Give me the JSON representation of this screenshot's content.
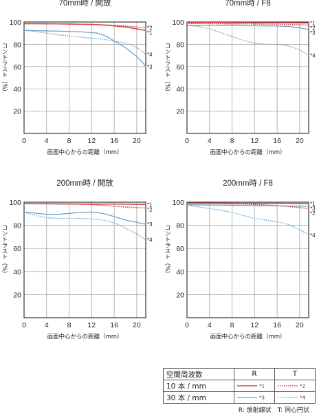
{
  "colors": {
    "R_10": "#d8474d",
    "T_10": "#d8474d",
    "R_30": "#6aa2cc",
    "T_30": "#6aa2cc",
    "axis": "#222222",
    "grid": "#9a9a9a"
  },
  "chart_data": [
    {
      "type": "line",
      "title": "70mm時 / 開放",
      "xlabel": "画面中心からの距離（mm）",
      "ylabel": "コントラスト（%）",
      "xlim": [
        0,
        21.6
      ],
      "ylim": [
        0,
        100
      ],
      "xticks": [
        0,
        4,
        8,
        12,
        16,
        20
      ],
      "yticks": [
        20,
        40,
        60,
        80,
        100
      ],
      "grid": true,
      "series": [
        {
          "name": "*1",
          "style": "R_10",
          "x": [
            0,
            2,
            4,
            6,
            8,
            10,
            12,
            14,
            16,
            18,
            20,
            21.6
          ],
          "y": [
            98.5,
            98.5,
            98.4,
            98.3,
            98.2,
            98,
            97.8,
            97.3,
            96.5,
            95.5,
            93.8,
            92.5
          ]
        },
        {
          "name": "*2",
          "style": "T_10",
          "x": [
            0,
            2,
            4,
            6,
            8,
            10,
            12,
            14,
            16,
            18,
            20,
            21.6
          ],
          "y": [
            98.5,
            98.5,
            98.4,
            98.3,
            98.2,
            98,
            97.8,
            97.5,
            97,
            96.5,
            95.5,
            94.8
          ]
        },
        {
          "name": "*3",
          "style": "R_30",
          "x": [
            0,
            2,
            4,
            6,
            8,
            10,
            12,
            13,
            14,
            15,
            16,
            17,
            18,
            19,
            20,
            21,
            21.6
          ],
          "y": [
            92.5,
            92.3,
            92,
            91.8,
            91.5,
            91.2,
            90.5,
            90,
            88.5,
            86,
            83,
            80,
            77,
            73,
            69,
            64,
            60
          ]
        },
        {
          "name": "*4",
          "style": "T_30",
          "x": [
            0,
            2,
            4,
            6,
            8,
            10,
            12,
            14,
            16,
            18,
            19,
            20,
            21,
            21.6
          ],
          "y": [
            92.5,
            91.5,
            90,
            88.5,
            87.5,
            86.5,
            85.5,
            84.5,
            83,
            81,
            79.5,
            77,
            73.5,
            71
          ]
        }
      ]
    },
    {
      "type": "line",
      "title": "70mm時 / F8",
      "xlabel": "画面中心からの距離（mm）",
      "ylabel": "コントラスト（%）",
      "xlim": [
        0,
        21.6
      ],
      "ylim": [
        0,
        100
      ],
      "xticks": [
        0,
        4,
        8,
        12,
        16,
        20
      ],
      "yticks": [
        20,
        40,
        60,
        80,
        100
      ],
      "grid": true,
      "series": [
        {
          "name": "*1",
          "style": "R_10",
          "x": [
            0,
            4,
            8,
            12,
            16,
            20,
            21.6
          ],
          "y": [
            99.5,
            99.5,
            99.4,
            99.3,
            99.3,
            99.2,
            99.2
          ]
        },
        {
          "name": "*2",
          "style": "T_10",
          "x": [
            0,
            4,
            8,
            12,
            16,
            18,
            20,
            21.6
          ],
          "y": [
            98.7,
            98.5,
            98.3,
            98.2,
            98,
            97.8,
            97.5,
            97.2
          ]
        },
        {
          "name": "*3",
          "style": "R_30",
          "x": [
            0,
            4,
            8,
            12,
            16,
            18,
            19,
            20,
            21,
            21.6
          ],
          "y": [
            97,
            97,
            96.8,
            96.6,
            96.4,
            96,
            95.5,
            94.8,
            93.8,
            93
          ]
        },
        {
          "name": "*4",
          "style": "T_30",
          "x": [
            0,
            2,
            4,
            6,
            8,
            10,
            12,
            14,
            16,
            17,
            18,
            19,
            20,
            21,
            21.6
          ],
          "y": [
            97,
            96,
            94,
            90.5,
            87,
            83.5,
            81,
            80,
            80,
            79.5,
            78.5,
            77,
            75,
            72,
            70
          ]
        }
      ]
    },
    {
      "type": "line",
      "title": "200mm時 / 開放",
      "xlabel": "画面中心からの距離（mm）",
      "ylabel": "コントラスト（%）",
      "xlim": [
        0,
        21.6
      ],
      "ylim": [
        0,
        100
      ],
      "xticks": [
        0,
        4,
        8,
        12,
        16,
        20
      ],
      "yticks": [
        20,
        40,
        60,
        80,
        100
      ],
      "grid": true,
      "series": [
        {
          "name": "*1",
          "style": "R_10",
          "x": [
            0,
            4,
            8,
            12,
            16,
            20,
            21.6
          ],
          "y": [
            98.7,
            98.6,
            98.5,
            98.4,
            98.4,
            98.2,
            98
          ]
        },
        {
          "name": "*2",
          "style": "T_10",
          "x": [
            0,
            4,
            8,
            12,
            14,
            16,
            18,
            20,
            21.6
          ],
          "y": [
            98.7,
            98.6,
            98.4,
            98,
            97.3,
            96.5,
            95.8,
            95.3,
            95
          ]
        },
        {
          "name": "*3",
          "style": "R_30",
          "x": [
            0,
            2,
            4,
            6,
            8,
            10,
            12,
            13,
            14,
            15,
            16,
            17,
            18,
            19,
            20,
            21,
            21.6
          ],
          "y": [
            91.5,
            90.5,
            89.5,
            89.5,
            90.3,
            91.2,
            91.5,
            91,
            90.2,
            89,
            87.5,
            86,
            84.5,
            83.5,
            82.5,
            81.5,
            81
          ]
        },
        {
          "name": "*4",
          "style": "T_30",
          "x": [
            0,
            2,
            4,
            6,
            8,
            10,
            12,
            14,
            15,
            16,
            17,
            18,
            19,
            20,
            21,
            21.6
          ],
          "y": [
            91.5,
            88.5,
            86.5,
            86,
            86,
            86,
            85.5,
            84.5,
            83.5,
            82,
            80,
            77.5,
            75,
            72.5,
            69.5,
            67.5
          ]
        }
      ]
    },
    {
      "type": "line",
      "title": "200mm時 / F8",
      "xlabel": "画面中心からの距離（mm）",
      "ylabel": "コントラスト（%）",
      "xlim": [
        0,
        21.6
      ],
      "ylim": [
        0,
        100
      ],
      "xticks": [
        0,
        4,
        8,
        12,
        16,
        20
      ],
      "yticks": [
        20,
        40,
        60,
        80,
        100
      ],
      "grid": true,
      "series": [
        {
          "name": "*1",
          "style": "R_10",
          "x": [
            0,
            4,
            8,
            12,
            16,
            20,
            21.6
          ],
          "y": [
            99.3,
            99.2,
            99.1,
            99,
            99,
            98.9,
            98.9
          ]
        },
        {
          "name": "*2",
          "style": "T_10",
          "x": [
            0,
            4,
            8,
            12,
            14,
            16,
            18,
            20,
            21.6
          ],
          "y": [
            99,
            98.8,
            98.5,
            98,
            97.6,
            97,
            96.3,
            95.3,
            94.5
          ]
        },
        {
          "name": "*3",
          "style": "R_30",
          "x": [
            0,
            4,
            8,
            12,
            16,
            18,
            20,
            21.6
          ],
          "y": [
            97.8,
            97.5,
            97.3,
            97,
            96.8,
            96.7,
            96.6,
            96.5
          ]
        },
        {
          "name": "*4",
          "style": "T_30",
          "x": [
            0,
            2,
            4,
            6,
            8,
            10,
            12,
            14,
            16,
            17,
            18,
            19,
            20,
            21,
            21.6
          ],
          "y": [
            97.5,
            96,
            94.5,
            93,
            91,
            88.5,
            86,
            84.5,
            83,
            82,
            80.5,
            78.5,
            76,
            73.5,
            71.5
          ]
        }
      ]
    }
  ],
  "legend": {
    "header": [
      "空間周波数",
      "R",
      "T"
    ],
    "rows": [
      {
        "label": "10 本 / mm",
        "R": "*1",
        "T": "*2"
      },
      {
        "label": "30 本 / mm",
        "R": "*3",
        "T": "*4"
      }
    ],
    "footnote": "R: 放射線状　T: 同心円状"
  }
}
